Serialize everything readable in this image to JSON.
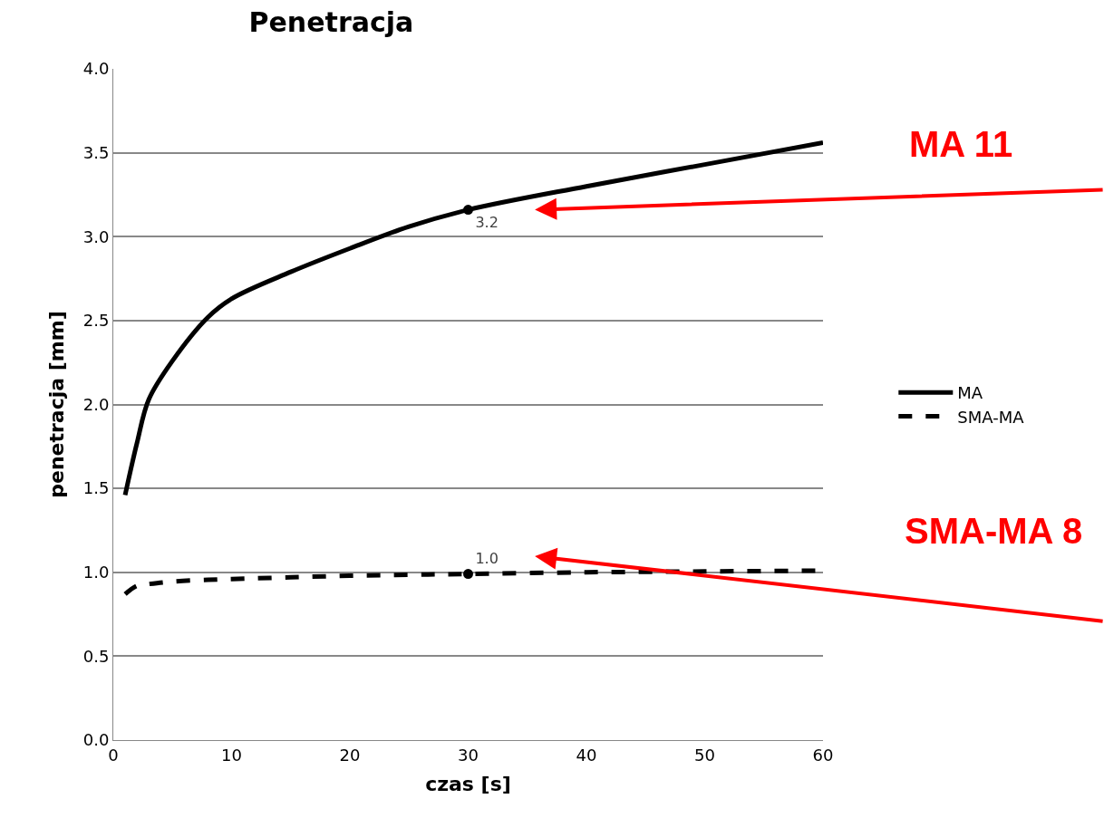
{
  "chart_data": {
    "type": "line",
    "title": "Penetracja",
    "xlabel": "czas [s]",
    "ylabel": "penetracja [mm]",
    "xlim": [
      0,
      60
    ],
    "xticks": [
      0,
      10,
      20,
      30,
      40,
      50,
      60
    ],
    "ylim": [
      0,
      4
    ],
    "yticks": [
      {
        "value": 0,
        "label": "0.0"
      },
      {
        "value": 0.5,
        "label": "0.5"
      },
      {
        "value": 1,
        "label": "1.0"
      },
      {
        "value": 1.5,
        "label": "1.5"
      },
      {
        "value": 2,
        "label": "2.0"
      },
      {
        "value": 2.5,
        "label": "2.5"
      },
      {
        "value": 3,
        "label": "3.0"
      },
      {
        "value": 3.5,
        "label": "3.5"
      },
      {
        "value": 4,
        "label": "4.0"
      }
    ],
    "grid": "y",
    "legend": "right",
    "marker": "none",
    "x": [
      1,
      2,
      3,
      5,
      8,
      10,
      15,
      20,
      25,
      30,
      40,
      50,
      60
    ],
    "series": [
      {
        "name": "MA",
        "color": "#000000",
        "line_style": "solid",
        "values": [
          1.46,
          1.77,
          2.03,
          2.26,
          2.52,
          2.63,
          2.79,
          2.93,
          3.06,
          3.16,
          3.3,
          3.43,
          3.56
        ]
      },
      {
        "name": "SMA-MA",
        "color": "#000000",
        "line_style": "dashed",
        "values": [
          0.87,
          0.92,
          0.93,
          0.945,
          0.955,
          0.96,
          0.97,
          0.98,
          0.985,
          0.99,
          1.0,
          1.005,
          1.01
        ]
      }
    ],
    "annotations": [
      {
        "text": "3.2",
        "x": 30,
        "y": 3.16
      },
      {
        "text": "1.0",
        "x": 30,
        "y": 0.99
      },
      "MA 11",
      "SMA-MA 8"
    ]
  }
}
